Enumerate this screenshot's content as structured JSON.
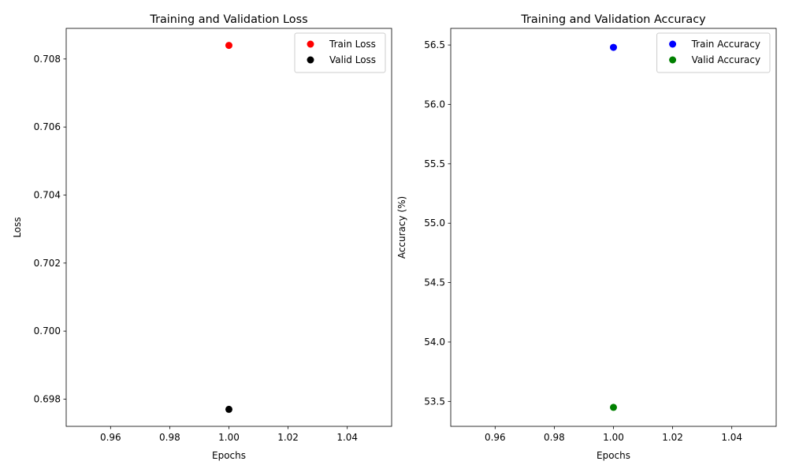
{
  "chart_data": [
    {
      "type": "scatter",
      "title": "Training and Validation Loss",
      "xlabel": "Epochs",
      "ylabel": "Loss",
      "xlim": [
        0.945,
        1.055
      ],
      "ylim": [
        0.6972,
        0.7089
      ],
      "xticks": [
        0.96,
        0.98,
        1.0,
        1.02,
        1.04
      ],
      "xtick_labels": [
        "0.96",
        "0.98",
        "1.00",
        "1.02",
        "1.04"
      ],
      "yticks": [
        0.698,
        0.7,
        0.702,
        0.704,
        0.706,
        0.708
      ],
      "ytick_labels": [
        "0.698",
        "0.700",
        "0.702",
        "0.704",
        "0.706",
        "0.708"
      ],
      "legend_position": "top-right",
      "grid": false,
      "series": [
        {
          "name": "Train Loss",
          "color": "#ff0000",
          "x": [
            1.0
          ],
          "y": [
            0.7084
          ]
        },
        {
          "name": "Valid Loss",
          "color": "#000000",
          "x": [
            1.0
          ],
          "y": [
            0.6977
          ]
        }
      ]
    },
    {
      "type": "scatter",
      "title": "Training and Validation Accuracy",
      "xlabel": "Epochs",
      "ylabel": "Accuracy (%)",
      "xlim": [
        0.945,
        1.055
      ],
      "ylim": [
        53.29,
        56.64
      ],
      "xticks": [
        0.96,
        0.98,
        1.0,
        1.02,
        1.04
      ],
      "xtick_labels": [
        "0.96",
        "0.98",
        "1.00",
        "1.02",
        "1.04"
      ],
      "yticks": [
        53.5,
        54.0,
        54.5,
        55.0,
        55.5,
        56.0,
        56.5
      ],
      "ytick_labels": [
        "53.5",
        "54.0",
        "54.5",
        "55.0",
        "55.5",
        "56.0",
        "56.5"
      ],
      "legend_position": "top-right",
      "grid": false,
      "series": [
        {
          "name": "Train Accuracy",
          "color": "#0000ff",
          "x": [
            1.0
          ],
          "y": [
            56.48
          ]
        },
        {
          "name": "Valid Accuracy",
          "color": "#008000",
          "x": [
            1.0
          ],
          "y": [
            53.45
          ]
        }
      ]
    }
  ]
}
